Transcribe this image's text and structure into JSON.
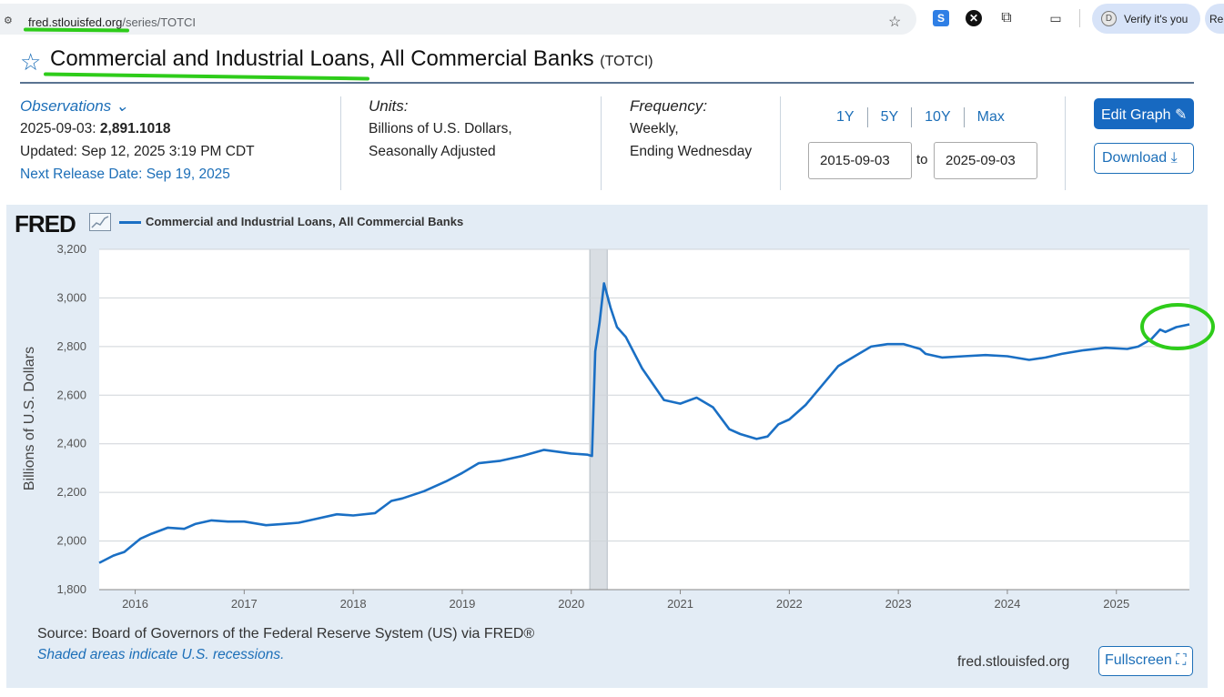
{
  "browser": {
    "url_host": "fred.stlouisfed.org",
    "url_path": "/series/TOTCI",
    "verify_label": "Verify it's you",
    "verify_avatar": "D",
    "extra_tab": "Re"
  },
  "page": {
    "title": "Commercial and Industrial Loans, All Commercial Banks",
    "series_code": "(TOTCI)"
  },
  "observations": {
    "heading": "Observations",
    "date": "2025-09-03:",
    "value": "2,891.1018",
    "updated": "Updated: Sep 12, 2025 3:19 PM CDT",
    "next_release": "Next Release Date: Sep 19, 2025"
  },
  "units": {
    "heading": "Units:",
    "line1": "Billions of U.S. Dollars,",
    "line2": "Seasonally Adjusted"
  },
  "frequency": {
    "heading": "Frequency:",
    "line1": "Weekly,",
    "line2": "Ending Wednesday"
  },
  "range": {
    "buttons": [
      "1Y",
      "5Y",
      "10Y",
      "Max"
    ],
    "start": "2015-09-03",
    "to_label": "to",
    "end": "2025-09-03"
  },
  "actions": {
    "edit_label": "Edit Graph",
    "download_label": "Download",
    "fullscreen_label": "Fullscreen"
  },
  "chart_panel": {
    "logo": "FRED",
    "source": "Source: Board of Governors of the Federal Reserve System (US) via FRED®",
    "shaded_note": "Shaded areas indicate U.S. recessions.",
    "site": "fred.stlouisfed.org"
  },
  "chart_data": {
    "type": "line",
    "title": "",
    "ylabel": "Billions of U.S. Dollars",
    "xlim": [
      2015.67,
      2025.67
    ],
    "ylim": [
      1800,
      3200
    ],
    "yticks": [
      1800,
      2000,
      2200,
      2400,
      2600,
      2800,
      3000,
      3200
    ],
    "xticks": [
      2016,
      2017,
      2018,
      2019,
      2020,
      2021,
      2022,
      2023,
      2024,
      2025
    ],
    "grid": true,
    "recession": [
      2020.17,
      2020.33
    ],
    "series": [
      {
        "name": "Commercial and Industrial Loans, All Commercial Banks",
        "color": "#1a6fc4",
        "x": [
          2015.67,
          2015.8,
          2015.9,
          2016.05,
          2016.15,
          2016.3,
          2016.45,
          2016.55,
          2016.7,
          2016.85,
          2017.0,
          2017.2,
          2017.35,
          2017.5,
          2017.65,
          2017.85,
          2018.0,
          2018.2,
          2018.35,
          2018.45,
          2018.65,
          2018.85,
          2019.0,
          2019.15,
          2019.35,
          2019.55,
          2019.75,
          2020.0,
          2020.15,
          2020.19,
          2020.22,
          2020.26,
          2020.3,
          2020.36,
          2020.42,
          2020.5,
          2020.65,
          2020.85,
          2021.0,
          2021.15,
          2021.3,
          2021.45,
          2021.55,
          2021.7,
          2021.8,
          2021.9,
          2022.0,
          2022.15,
          2022.3,
          2022.45,
          2022.6,
          2022.75,
          2022.9,
          2023.05,
          2023.2,
          2023.25,
          2023.4,
          2023.6,
          2023.8,
          2024.0,
          2024.2,
          2024.35,
          2024.5,
          2024.7,
          2024.9,
          2025.1,
          2025.2,
          2025.32,
          2025.4,
          2025.45,
          2025.55,
          2025.67
        ],
        "y": [
          1910,
          1940,
          1955,
          2010,
          2030,
          2055,
          2050,
          2070,
          2085,
          2080,
          2080,
          2065,
          2070,
          2075,
          2090,
          2110,
          2105,
          2115,
          2165,
          2175,
          2205,
          2245,
          2280,
          2320,
          2330,
          2350,
          2375,
          2360,
          2355,
          2350,
          2780,
          2900,
          3060,
          2960,
          2880,
          2840,
          2710,
          2580,
          2565,
          2590,
          2550,
          2460,
          2440,
          2420,
          2430,
          2480,
          2500,
          2560,
          2640,
          2720,
          2760,
          2800,
          2810,
          2810,
          2790,
          2770,
          2755,
          2760,
          2765,
          2760,
          2745,
          2755,
          2770,
          2785,
          2795,
          2790,
          2800,
          2830,
          2870,
          2860,
          2880,
          2891
        ]
      }
    ]
  }
}
